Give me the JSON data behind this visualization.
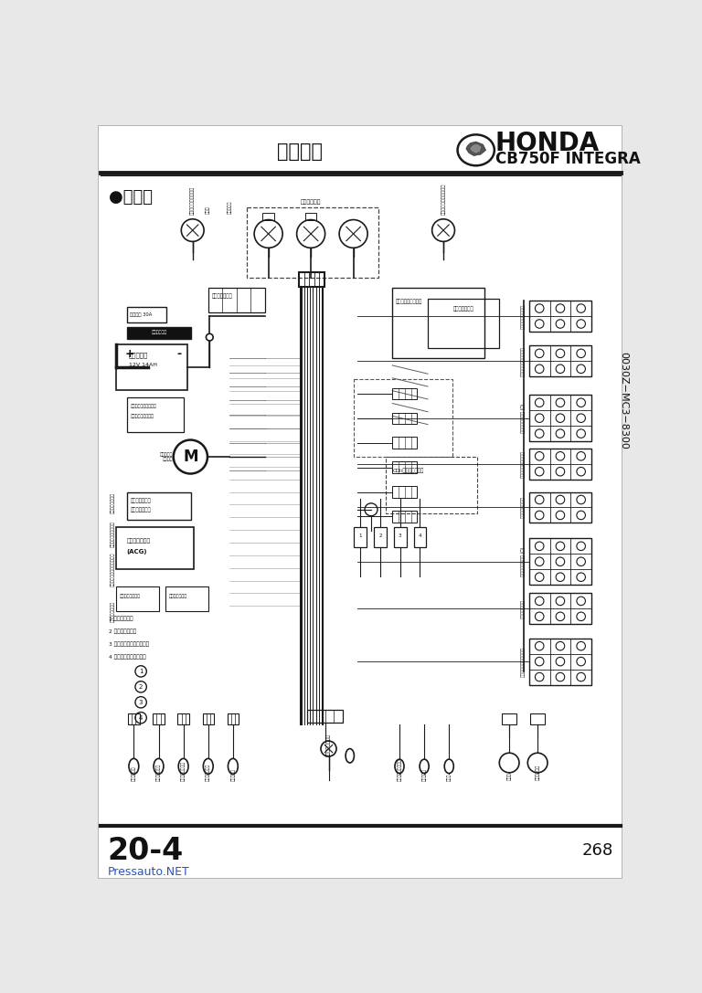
{
  "bg_color": "#e8e8e8",
  "page_bg": "#ffffff",
  "title_jp": "整備情報",
  "brand": "HONDA",
  "model": "CB750F INTEGRA",
  "section_label": "●配線図",
  "doc_num": "0030Z−MC3−8300",
  "page_left": "20-4",
  "page_right": "268",
  "watermark": "Pressauto.NET",
  "line_color": "#1a1a1a",
  "text_color": "#111111",
  "watermark_color": "#2255cc",
  "header_line_thick": 3.5,
  "header_line_thin": 0.8
}
